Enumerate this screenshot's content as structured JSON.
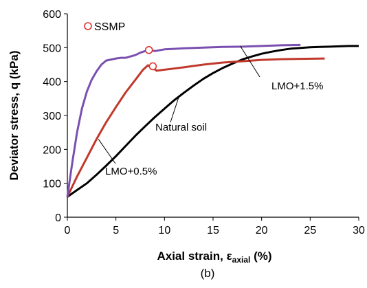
{
  "chart_data": {
    "type": "line",
    "panel_label": "(b)",
    "xlabel_parts": {
      "main": "Axial strain, ε",
      "sub": "axial",
      "tail": " (%)"
    },
    "ylabel": "Deviator stress, q (kPa)",
    "xlim": [
      0,
      30
    ],
    "ylim": [
      0,
      600
    ],
    "x_ticks": [
      0,
      5,
      10,
      15,
      20,
      25,
      30
    ],
    "y_ticks": [
      0,
      100,
      200,
      300,
      400,
      500,
      600
    ],
    "grid": false,
    "legend": {
      "label": "SSMP",
      "marker": "open-circle",
      "color": "#e03030",
      "placement": "top-left"
    },
    "series": [
      {
        "name": "Natural soil",
        "color": "#000000",
        "points": [
          [
            0,
            60
          ],
          [
            1,
            80
          ],
          [
            2,
            100
          ],
          [
            3,
            125
          ],
          [
            4,
            152
          ],
          [
            5,
            180
          ],
          [
            6,
            210
          ],
          [
            7,
            240
          ],
          [
            8,
            268
          ],
          [
            9,
            295
          ],
          [
            10,
            320
          ],
          [
            11,
            345
          ],
          [
            12,
            367
          ],
          [
            13,
            388
          ],
          [
            14,
            408
          ],
          [
            15,
            425
          ],
          [
            16,
            440
          ],
          [
            17,
            453
          ],
          [
            18,
            465
          ],
          [
            19,
            474
          ],
          [
            20,
            482
          ],
          [
            21,
            488
          ],
          [
            22,
            493
          ],
          [
            23,
            497
          ],
          [
            24,
            499
          ],
          [
            25,
            501
          ],
          [
            26,
            502
          ],
          [
            27,
            503
          ],
          [
            28,
            504
          ],
          [
            29,
            505
          ],
          [
            30,
            505
          ]
        ]
      },
      {
        "name": "LMO+0.5%",
        "color": "#c0392b",
        "points": [
          [
            0,
            60
          ],
          [
            1,
            120
          ],
          [
            2,
            175
          ],
          [
            3,
            230
          ],
          [
            4,
            280
          ],
          [
            5,
            325
          ],
          [
            6,
            368
          ],
          [
            7,
            405
          ],
          [
            7.8,
            435
          ],
          [
            8.3,
            448
          ],
          [
            8.7,
            442
          ],
          [
            9.2,
            432
          ],
          [
            10,
            435
          ],
          [
            12,
            442
          ],
          [
            14,
            450
          ],
          [
            16,
            456
          ],
          [
            18,
            460
          ],
          [
            20,
            464
          ],
          [
            22,
            466
          ],
          [
            24,
            467
          ],
          [
            26.5,
            468
          ]
        ]
      },
      {
        "name": "LMO+1.5%",
        "color": "#7b4fb0",
        "points": [
          [
            0,
            60
          ],
          [
            0.5,
            160
          ],
          [
            1,
            250
          ],
          [
            1.5,
            320
          ],
          [
            2,
            370
          ],
          [
            2.5,
            405
          ],
          [
            3,
            430
          ],
          [
            3.5,
            450
          ],
          [
            4,
            462
          ],
          [
            5,
            468
          ],
          [
            5.5,
            470
          ],
          [
            6,
            470
          ],
          [
            7,
            478
          ],
          [
            7.5,
            485
          ],
          [
            8,
            490
          ],
          [
            8.5,
            493
          ],
          [
            9,
            490
          ],
          [
            10,
            495
          ],
          [
            12,
            498
          ],
          [
            14,
            500
          ],
          [
            16,
            502
          ],
          [
            18,
            503
          ],
          [
            20,
            505
          ],
          [
            22,
            507
          ],
          [
            24,
            508
          ]
        ]
      }
    ],
    "ssmp_points": [
      {
        "x": 8.4,
        "y": 493
      },
      {
        "x": 8.8,
        "y": 445
      }
    ],
    "annotations": [
      {
        "text": "LMO+1.5%",
        "series": "LMO+1.5%",
        "anchor": [
          17.8,
          505
        ]
      },
      {
        "text": "Natural soil",
        "series": "Natural soil",
        "anchor": [
          11.5,
          357
        ]
      },
      {
        "text": "LMO+0.5%",
        "series": "LMO+0.5%",
        "anchor": [
          3.2,
          230
        ]
      }
    ]
  }
}
